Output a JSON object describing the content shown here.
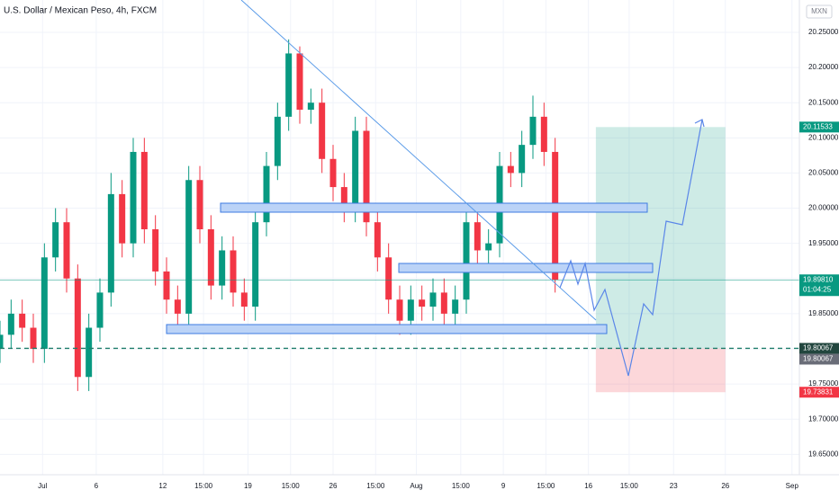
{
  "chart_data": {
    "type": "candlestick",
    "title": "U.S. Dollar / Mexican Peso, 4h, FXCM",
    "currency": "MXN",
    "x": [
      0,
      3,
      6,
      9,
      12,
      15,
      18,
      21,
      24,
      27,
      30,
      33,
      36,
      39,
      42,
      45,
      48,
      51,
      54,
      57,
      60,
      63,
      66,
      69,
      72,
      75,
      78,
      81,
      84,
      87,
      90,
      93,
      96,
      99,
      102,
      105,
      108,
      111,
      114,
      117,
      120,
      123,
      126,
      129,
      132,
      135,
      138,
      141,
      144,
      147,
      150
    ],
    "open": [
      19.8,
      19.82,
      19.85,
      19.83,
      19.8,
      19.93,
      19.98,
      19.9,
      19.76,
      19.83,
      19.88,
      20.02,
      19.95,
      20.08,
      19.97,
      19.91,
      19.87,
      19.85,
      20.04,
      19.97,
      19.89,
      19.94,
      19.88,
      19.86,
      19.98,
      20.06,
      20.13,
      20.22,
      20.14,
      20.15,
      20.07,
      20.03,
      20.0,
      20.11,
      19.98,
      19.93,
      19.87,
      19.84,
      19.87,
      19.86,
      19.88,
      19.85,
      19.87,
      19.98,
      19.94,
      19.95,
      20.06,
      20.05,
      20.09,
      20.13,
      20.08
    ],
    "high": [
      19.84,
      19.87,
      19.87,
      19.85,
      19.95,
      20.0,
      20.0,
      19.92,
      19.85,
      19.9,
      20.05,
      20.04,
      20.1,
      20.1,
      19.99,
      19.93,
      19.89,
      20.06,
      20.06,
      19.99,
      19.96,
      19.96,
      19.9,
      20.0,
      20.08,
      20.15,
      20.24,
      20.23,
      20.17,
      20.17,
      20.09,
      20.05,
      20.13,
      20.13,
      20.0,
      19.95,
      19.89,
      19.89,
      19.89,
      19.9,
      19.9,
      19.89,
      20.0,
      20.0,
      19.97,
      20.08,
      20.08,
      20.11,
      20.16,
      20.15,
      20.1
    ],
    "low": [
      19.78,
      19.8,
      19.81,
      19.78,
      19.78,
      19.91,
      19.88,
      19.74,
      19.74,
      19.81,
      19.86,
      19.93,
      19.93,
      19.95,
      19.89,
      19.85,
      19.83,
      19.83,
      19.95,
      19.87,
      19.87,
      19.86,
      19.84,
      19.84,
      19.96,
      20.04,
      20.11,
      20.12,
      20.12,
      20.05,
      20.01,
      19.98,
      19.98,
      19.96,
      19.91,
      19.85,
      19.82,
      19.82,
      19.84,
      19.84,
      19.83,
      19.83,
      19.85,
      19.92,
      19.92,
      19.93,
      20.03,
      20.03,
      20.07,
      20.06,
      19.88
    ],
    "close": [
      19.82,
      19.85,
      19.83,
      19.8,
      19.93,
      19.98,
      19.9,
      19.76,
      19.83,
      19.88,
      20.02,
      19.95,
      20.08,
      19.97,
      19.91,
      19.87,
      19.85,
      20.04,
      19.97,
      19.89,
      19.94,
      19.88,
      19.86,
      19.98,
      20.06,
      20.13,
      20.22,
      20.14,
      20.15,
      20.07,
      20.03,
      20.0,
      20.11,
      19.98,
      19.93,
      19.87,
      19.84,
      19.87,
      19.86,
      19.88,
      19.85,
      19.87,
      19.98,
      19.94,
      19.95,
      20.06,
      20.05,
      20.09,
      20.13,
      20.08,
      19.8981
    ],
    "up_color": "#089981",
    "down_color": "#f23645",
    "xlim": [
      0,
      216
    ],
    "ylim": [
      19.621,
      20.296
    ],
    "xticks": [
      {
        "value": 11.5,
        "label": "Jul"
      },
      {
        "value": 26,
        "label": "6"
      },
      {
        "value": 44,
        "label": "12"
      },
      {
        "value": 55,
        "label": "15:00"
      },
      {
        "value": 67,
        "label": "19"
      },
      {
        "value": 78.5,
        "label": "15:00"
      },
      {
        "value": 90,
        "label": "26"
      },
      {
        "value": 101.5,
        "label": "15:00"
      },
      {
        "value": 112.5,
        "label": "Aug"
      },
      {
        "value": 124.5,
        "label": "15:00"
      },
      {
        "value": 136,
        "label": "9"
      },
      {
        "value": 147.5,
        "label": "15:00"
      },
      {
        "value": 159,
        "label": "16"
      },
      {
        "value": 170,
        "label": "15:00"
      },
      {
        "value": 182,
        "label": "23"
      },
      {
        "value": 196,
        "label": "26"
      },
      {
        "value": 214,
        "label": "Sep"
      }
    ],
    "yticks": [
      {
        "value": 20.25,
        "label": "20.25000"
      },
      {
        "value": 20.2,
        "label": "20.20000"
      },
      {
        "value": 20.15,
        "label": "20.15000"
      },
      {
        "value": 20.1,
        "label": "20.10000"
      },
      {
        "value": 20.05,
        "label": "20.05000"
      },
      {
        "value": 20,
        "label": "20.00000"
      },
      {
        "value": 19.95,
        "label": "19.95000"
      },
      {
        "value": 19.9,
        "label": "19.90000"
      },
      {
        "value": 19.85,
        "label": "19.85000"
      },
      {
        "value": 19.8,
        "label": "19.80000"
      },
      {
        "value": 19.75,
        "label": "19.75000"
      },
      {
        "value": 19.7,
        "label": "19.70000"
      },
      {
        "value": 19.65,
        "label": "19.65000"
      }
    ],
    "last_price": {
      "value": 19.8981,
      "label": "19.89810"
    },
    "countdown": "01:04:25",
    "horizontal_line": 19.80067,
    "position_tool": {
      "target": 20.11533,
      "entry": 19.80067,
      "stop": 19.73831
    }
  }
}
